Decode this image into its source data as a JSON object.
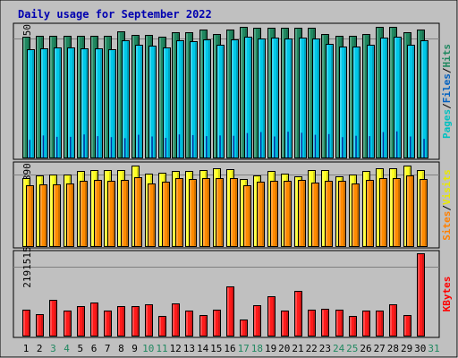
{
  "chart_data": {
    "type": "bar",
    "title": "Daily usage for September 2022",
    "categories": [
      "1",
      "2",
      "3",
      "4",
      "5",
      "6",
      "7",
      "8",
      "9",
      "10",
      "11",
      "12",
      "13",
      "14",
      "15",
      "16",
      "17",
      "18",
      "19",
      "20",
      "21",
      "22",
      "23",
      "24",
      "25",
      "26",
      "27",
      "28",
      "29",
      "30",
      "31"
    ],
    "weekend_days": [
      "3",
      "4",
      "10",
      "11",
      "17",
      "18",
      "24",
      "25",
      "31"
    ],
    "panels": [
      {
        "name": "hits-files-pages",
        "ylabel_parts": [
          "Pages",
          "/",
          "Files",
          "/",
          "Hits"
        ],
        "ylabel_colors": [
          "#00c0c0",
          "#000000",
          "#0060c0",
          "#000000",
          "#208860"
        ],
        "ytick": "34950",
        "ytick_value": 34950,
        "ylim": [
          0,
          39000
        ],
        "series": [
          {
            "name": "Hits",
            "color": "#208860",
            "values": [
              35700,
              35900,
              35800,
              35900,
              35800,
              35900,
              35800,
              37200,
              36200,
              36200,
              35600,
              37000,
              37000,
              37600,
              36400,
              37600,
              38400,
              38100,
              38100,
              38100,
              38200,
              38100,
              36300,
              35800,
              35900,
              36400,
              38600,
              38600,
              36800,
              37600
            ]
          },
          {
            "name": "Files",
            "color": "#00c8e8",
            "values": [
              32000,
              32200,
              32300,
              32300,
              32100,
              32100,
              32000,
              34600,
              33200,
              33000,
              32500,
              34600,
              34300,
              34800,
              33300,
              34800,
              35600,
              35100,
              35200,
              35100,
              35200,
              35000,
              33400,
              32700,
              32700,
              33200,
              35300,
              35600,
              33300,
              34400
            ]
          },
          {
            "name": "Pages",
            "color": "#0030a0",
            "values": [
              5200,
              6500,
              6100,
              6100,
              6800,
              6300,
              6000,
              5700,
              6700,
              6200,
              5800,
              6800,
              6600,
              6300,
              6500,
              6400,
              7200,
              7500,
              6200,
              7600,
              7300,
              6700,
              6900,
              6000,
              6400,
              6300,
              7500,
              7700,
              6200,
              5500
            ]
          }
        ]
      },
      {
        "name": "visits-sites",
        "ylabel_parts": [
          "Sites",
          "/",
          "Visits"
        ],
        "ylabel_colors": [
          "#ff8000",
          "#000000",
          "#e8e800"
        ],
        "ytick": "1890",
        "ytick_value": 1890,
        "ylim": [
          0,
          2180
        ],
        "series": [
          {
            "name": "Visits",
            "color": "#ffff22",
            "values": [
              1790,
              1870,
              1890,
              1900,
              1980,
              2020,
              2010,
              2010,
              2140,
              1920,
              1940,
              2000,
              2000,
              2010,
              2050,
              2040,
              1780,
              1880,
              1990,
              1920,
              1860,
              2020,
              2020,
              1860,
              1890,
              1990,
              2060,
              2070,
              2140,
              2010
            ]
          },
          {
            "name": "Sites",
            "color": "#ff8a00",
            "values": [
              1600,
              1640,
              1640,
              1660,
              1740,
              1760,
              1730,
              1760,
              1820,
              1660,
              1700,
              1790,
              1780,
              1790,
              1790,
              1800,
              1620,
              1700,
              1730,
              1730,
              1760,
              1690,
              1730,
              1720,
              1650,
              1760,
              1800,
              1800,
              1880,
              1780
            ]
          }
        ]
      },
      {
        "name": "kbytes",
        "ylabel_parts": [
          "KBytes"
        ],
        "ylabel_colors": [
          "#ff0000"
        ],
        "ytick": "2191515",
        "ytick_value": 2191515,
        "ylim": [
          0,
          2660000
        ],
        "series": [
          {
            "name": "KBytes",
            "color": "#ff1a1a",
            "values": [
              830000,
              680000,
              1130000,
              810000,
              950000,
              1060000,
              790000,
              930000,
              940000,
              1010000,
              630000,
              1040000,
              790000,
              670000,
              840000,
              1570000,
              520000,
              970000,
              1270000,
              810000,
              1440000,
              840000,
              870000,
              820000,
              620000,
              810000,
              810000,
              990000,
              650000,
              2630000
            ]
          }
        ]
      }
    ]
  }
}
